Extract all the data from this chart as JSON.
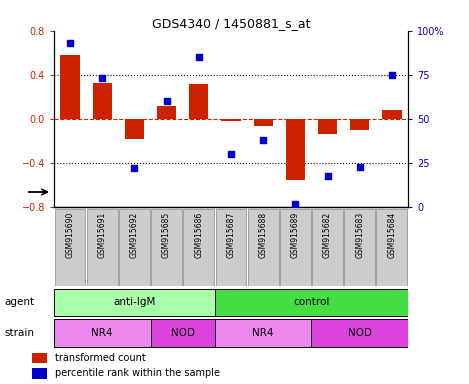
{
  "title": "GDS4340 / 1450881_s_at",
  "samples": [
    "GSM915690",
    "GSM915691",
    "GSM915692",
    "GSM915685",
    "GSM915686",
    "GSM915687",
    "GSM915688",
    "GSM915689",
    "GSM915682",
    "GSM915683",
    "GSM915684"
  ],
  "bar_values": [
    0.58,
    0.33,
    -0.18,
    0.12,
    0.32,
    -0.02,
    -0.06,
    -0.55,
    -0.14,
    -0.1,
    0.08
  ],
  "scatter_values": [
    93,
    73,
    22,
    60,
    85,
    30,
    38,
    2,
    18,
    23,
    75
  ],
  "bar_color": "#cc2200",
  "scatter_color": "#0000cc",
  "ylim": [
    -0.8,
    0.8
  ],
  "y2lim": [
    0,
    100
  ],
  "yticks": [
    -0.8,
    -0.4,
    0.0,
    0.4,
    0.8
  ],
  "y2ticks": [
    0,
    25,
    50,
    75,
    100
  ],
  "y2ticklabels": [
    "0",
    "25",
    "50",
    "75",
    "100%"
  ],
  "hline_y": 0.0,
  "dotted_lines": [
    -0.4,
    0.4
  ],
  "agent_groups": [
    {
      "label": "anti-IgM",
      "start": 0,
      "end": 5,
      "color": "#aaffaa"
    },
    {
      "label": "control",
      "start": 5,
      "end": 11,
      "color": "#44dd44"
    }
  ],
  "strain_groups": [
    {
      "label": "NR4",
      "start": 0,
      "end": 3,
      "color": "#ee88ee"
    },
    {
      "label": "NOD",
      "start": 3,
      "end": 5,
      "color": "#dd44dd"
    },
    {
      "label": "NR4",
      "start": 5,
      "end": 8,
      "color": "#ee88ee"
    },
    {
      "label": "NOD",
      "start": 8,
      "end": 11,
      "color": "#dd44dd"
    }
  ],
  "legend_bar_label": "transformed count",
  "legend_scatter_label": "percentile rank within the sample",
  "agent_label": "agent",
  "strain_label": "strain",
  "xtick_bg_color": "#cccccc",
  "xtick_border_color": "#888888"
}
